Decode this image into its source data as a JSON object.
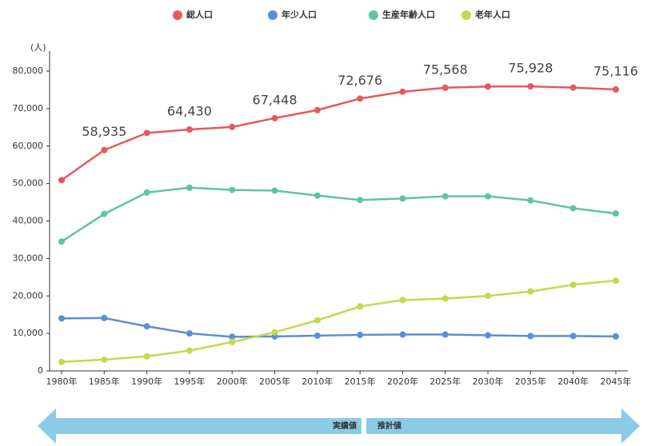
{
  "chart_data": {
    "type": "line",
    "y_label": "(人)",
    "categories": [
      "1980年",
      "1985年",
      "1990年",
      "1995年",
      "2000年",
      "2005年",
      "2010年",
      "2015年",
      "2020年",
      "2025年",
      "2030年",
      "2035年",
      "2040年",
      "2045年"
    ],
    "series": [
      {
        "name": "総人口",
        "color": "#e8585c",
        "values": [
          50900,
          58935,
          63500,
          64430,
          65100,
          67448,
          69600,
          72676,
          74500,
          75568,
          75900,
          75928,
          75600,
          75116
        ],
        "value_labels": [
          null,
          "58,935",
          null,
          "64,430",
          null,
          "67,448",
          null,
          "72,676",
          null,
          "75,568",
          null,
          "75,928",
          null,
          "75,116"
        ]
      },
      {
        "name": "年少人口",
        "color": "#5b8fd4",
        "values": [
          14000,
          14100,
          11900,
          10000,
          9100,
          9200,
          9400,
          9600,
          9700,
          9700,
          9500,
          9300,
          9300,
          9200
        ]
      },
      {
        "name": "生産年齢人口",
        "color": "#5cc79a",
        "values": [
          34500,
          41900,
          47600,
          48900,
          48300,
          48100,
          46800,
          45600,
          46000,
          46600,
          46600,
          45500,
          43400,
          42000
        ]
      },
      {
        "name": "老年人口",
        "color": "#c2d94a",
        "values": [
          2400,
          3000,
          3900,
          5400,
          7700,
          10300,
          13500,
          17200,
          18900,
          19300,
          20000,
          21200,
          23000,
          24100
        ]
      }
    ],
    "ylim": [
      0,
      80000
    ],
    "yticks": [
      0,
      {
        "value": 10000,
        "label": "10,000"
      },
      {
        "value": 20000,
        "label": "20,000"
      },
      {
        "value": 30000,
        "label": "30,000"
      },
      {
        "value": 40000,
        "label": "40,000"
      },
      {
        "value": 50000,
        "label": "50,000"
      },
      {
        "value": 60000,
        "label": "60,000"
      },
      {
        "value": 70000,
        "label": "70,000"
      },
      {
        "value": 80000,
        "label": "80,000"
      }
    ],
    "grid": false,
    "legend": "top",
    "annotations": [
      "実績値",
      "推計値"
    ]
  }
}
